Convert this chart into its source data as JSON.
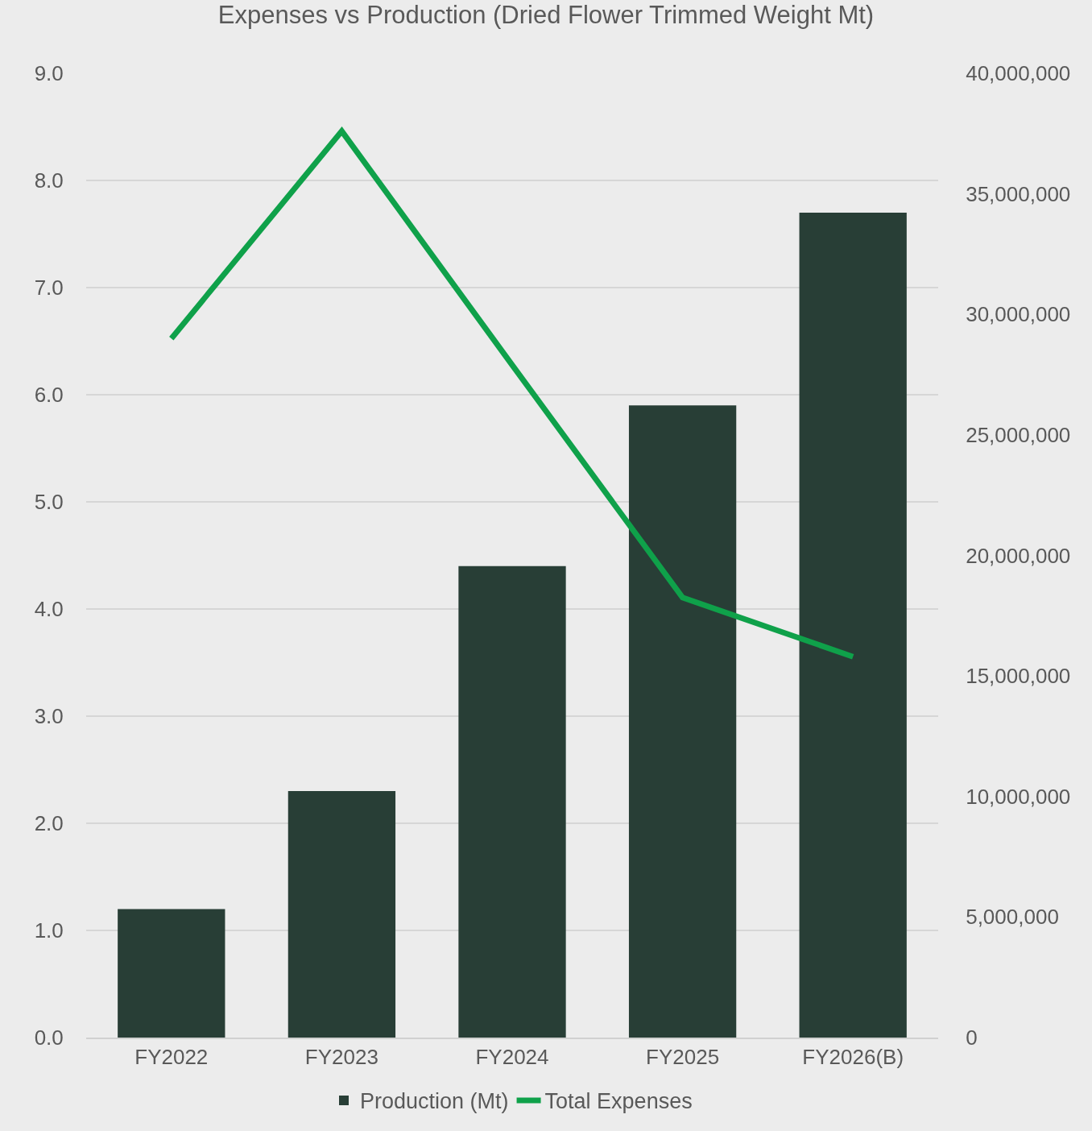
{
  "chart_data": {
    "type": "bar",
    "title": "Expenses vs Production (Dried Flower Trimmed Weight Mt)",
    "categories": [
      "FY2022",
      "FY2023",
      "FY2024",
      "FY2025",
      "FY2026(B)"
    ],
    "series": [
      {
        "name": "Production (Mt)",
        "color": "#283e36",
        "values": [
          1.2,
          2.3,
          4.4,
          5.9,
          7.7
        ]
      },
      {
        "name": "Total Expenses",
        "type": "line",
        "axis": "y2",
        "color": "#0fa14a",
        "marker": "none",
        "line_style": "solid",
        "values": [
          29000000,
          37600000,
          27900000,
          18250000,
          15800000
        ]
      }
    ],
    "ylim": [
      0,
      9
    ],
    "yticks": [
      {
        "value": 0,
        "label": "0.0"
      },
      {
        "value": 1,
        "label": "1.0"
      },
      {
        "value": 2,
        "label": "2.0"
      },
      {
        "value": 3,
        "label": "3.0"
      },
      {
        "value": 4,
        "label": "4.0"
      },
      {
        "value": 5,
        "label": "5.0"
      },
      {
        "value": 6,
        "label": "6.0"
      },
      {
        "value": 7,
        "label": "7.0"
      },
      {
        "value": 8,
        "label": "8.0"
      },
      {
        "value": 9,
        "label": "9.0"
      }
    ],
    "y2lim": [
      0,
      40000000
    ],
    "y2ticks": [
      0,
      {
        "value": 5000000,
        "label": "5,000,000"
      },
      {
        "value": 10000000,
        "label": "10,000,000"
      },
      {
        "value": 15000000,
        "label": "15,000,000"
      },
      {
        "value": 20000000,
        "label": "20,000,000"
      },
      {
        "value": 25000000,
        "label": "25,000,000"
      },
      {
        "value": 30000000,
        "label": "30,000,000"
      },
      {
        "value": 35000000,
        "label": "35,000,000"
      },
      {
        "value": 40000000,
        "label": "40,000,000"
      }
    ],
    "grid": "y",
    "legend": "bottom"
  }
}
